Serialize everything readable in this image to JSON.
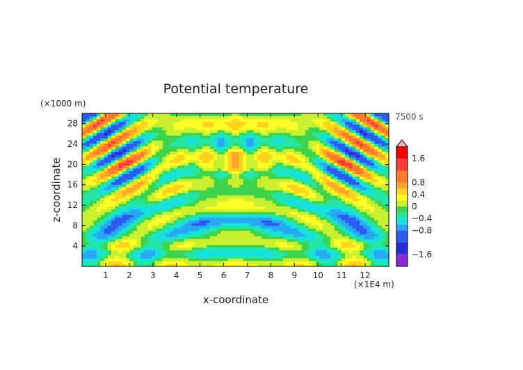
{
  "chart_data": {
    "type": "heatmap",
    "title": "Potential temperature",
    "xlabel": "x-coordinate",
    "ylabel": "z-coordinate",
    "x_unit": "(×1E4 m)",
    "y_unit": "(×1000 m)",
    "time_label": "7500 s",
    "x_range": [
      0,
      13
    ],
    "y_range": [
      0,
      30
    ],
    "x_ticks": [
      "1",
      "2",
      "3",
      "4",
      "5",
      "6",
      "7",
      "8",
      "9",
      "10",
      "11",
      "12"
    ],
    "y_ticks": [
      "4",
      "8",
      "12",
      "16",
      "20",
      "24",
      "28"
    ],
    "colorbar": {
      "range": [
        -2,
        2
      ],
      "tick_labels": [
        {
          "value": 1.6,
          "label": "1.6"
        },
        {
          "value": 0.8,
          "label": "0.8"
        },
        {
          "value": 0.4,
          "label": "0.4"
        },
        {
          "value": 0,
          "label": "0"
        },
        {
          "value": -0.4,
          "label": "−0.4"
        },
        {
          "value": -0.8,
          "label": "−0.8"
        },
        {
          "value": -1.6,
          "label": "−1.6"
        }
      ],
      "levels": [
        {
          "min": 1.6,
          "max": 2.0,
          "color": "#ff0000"
        },
        {
          "min": 1.2,
          "max": 1.6,
          "color": "#ff3a3a"
        },
        {
          "min": 0.8,
          "max": 1.2,
          "color": "#ff7a2a"
        },
        {
          "min": 0.6,
          "max": 0.8,
          "color": "#ffa52a"
        },
        {
          "min": 0.4,
          "max": 0.6,
          "color": "#ffd21e"
        },
        {
          "min": 0.2,
          "max": 0.4,
          "color": "#ffff28"
        },
        {
          "min": 0.0,
          "max": 0.2,
          "color": "#c8f030"
        },
        {
          "min": -0.2,
          "max": 0.0,
          "color": "#3ed34a"
        },
        {
          "min": -0.4,
          "max": -0.2,
          "color": "#24e6a6"
        },
        {
          "min": -0.6,
          "max": -0.4,
          "color": "#16e0e0"
        },
        {
          "min": -0.8,
          "max": -0.6,
          "color": "#28a8f0"
        },
        {
          "min": -1.2,
          "max": -0.8,
          "color": "#2a5cf0"
        },
        {
          "min": -1.6,
          "max": -1.2,
          "color": "#2a2ad2"
        },
        {
          "min": -2.0,
          "max": -1.6,
          "color": "#8a2ad2"
        }
      ],
      "overflow_color": "#ffaaaa"
    },
    "field_description": "gravity-wave pattern from a surface source at x≈6.5; value ≈0 (green) background"
  }
}
